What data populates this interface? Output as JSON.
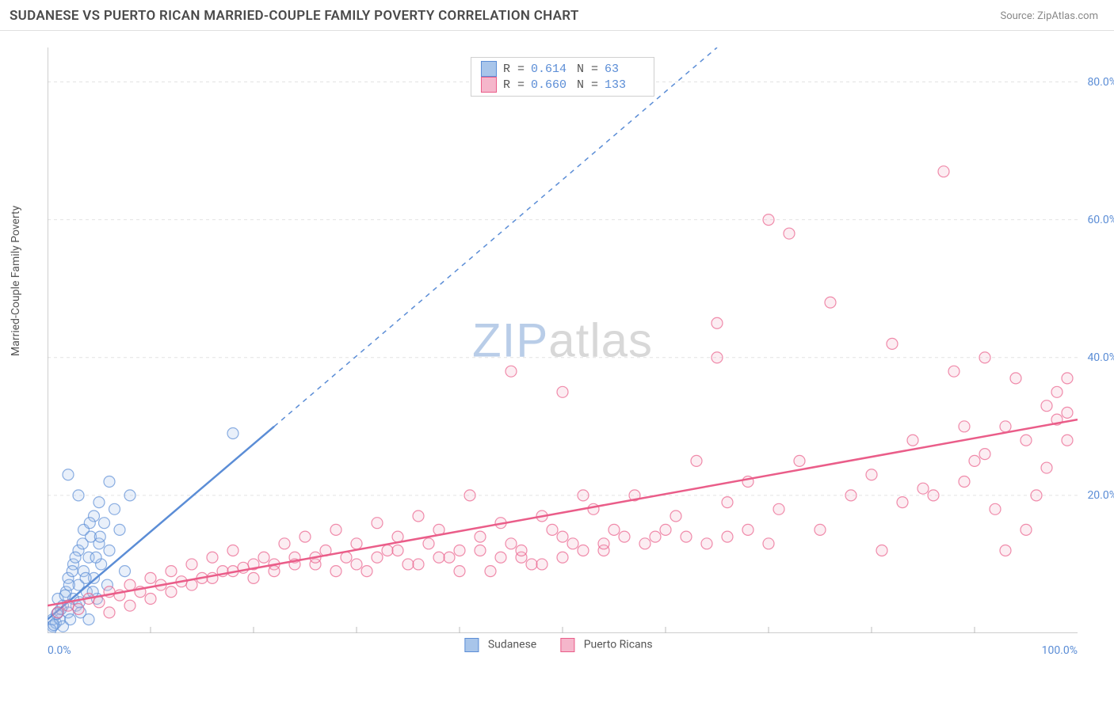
{
  "header": {
    "title": "SUDANESE VS PUERTO RICAN MARRIED-COUPLE FAMILY POVERTY CORRELATION CHART",
    "source": "Source: ZipAtlas.com"
  },
  "watermark": {
    "part1": "ZIP",
    "part2": "atlas"
  },
  "chart": {
    "type": "scatter",
    "ylabel": "Married-Couple Family Poverty",
    "xlim": [
      0,
      100
    ],
    "ylim": [
      0,
      85
    ],
    "xtick_labels": {
      "left": "0.0%",
      "right": "100.0%"
    },
    "xtick_minor": [
      10,
      20,
      30,
      40,
      50,
      60,
      70,
      80,
      90
    ],
    "ytick_labels": [
      "20.0%",
      "40.0%",
      "60.0%",
      "80.0%"
    ],
    "ytick_values": [
      20,
      40,
      60,
      80
    ],
    "grid_color": "#e3e3e3",
    "axis_color": "#bdbdbd",
    "background_color": "#ffffff",
    "marker_radius": 7,
    "marker_stroke_width": 1.2,
    "fill_opacity": 0.25,
    "series": [
      {
        "name": "Sudanese",
        "stat_r": "0.614",
        "stat_n": "63",
        "color": "#5b8dd6",
        "fill": "#a8c5ea",
        "trend_solid": {
          "x1": 0,
          "y1": 2,
          "x2": 22,
          "y2": 30
        },
        "trend_dash": {
          "x1": 22,
          "y1": 30,
          "x2": 65,
          "y2": 85
        },
        "points": [
          [
            0.5,
            1
          ],
          [
            0.5,
            2
          ],
          [
            0.8,
            1.5
          ],
          [
            1,
            3
          ],
          [
            1,
            5
          ],
          [
            1.2,
            2
          ],
          [
            1.5,
            4
          ],
          [
            1.5,
            1
          ],
          [
            1.8,
            6
          ],
          [
            2,
            3
          ],
          [
            2,
            8
          ],
          [
            2.2,
            2
          ],
          [
            2.5,
            5
          ],
          [
            2.5,
            10
          ],
          [
            2.8,
            4
          ],
          [
            3,
            7
          ],
          [
            3,
            12
          ],
          [
            3.2,
            3
          ],
          [
            3.5,
            9
          ],
          [
            3.5,
            15
          ],
          [
            3.8,
            6
          ],
          [
            4,
            11
          ],
          [
            4,
            2
          ],
          [
            4.2,
            14
          ],
          [
            4.5,
            8
          ],
          [
            4.5,
            17
          ],
          [
            4.8,
            5
          ],
          [
            5,
            13
          ],
          [
            5,
            19
          ],
          [
            5.2,
            10
          ],
          [
            5.5,
            16
          ],
          [
            5.8,
            7
          ],
          [
            6,
            12
          ],
          [
            6,
            22
          ],
          [
            6.5,
            18
          ],
          [
            7,
            15
          ],
          [
            7.5,
            9
          ],
          [
            8,
            20
          ],
          [
            1,
            -1
          ],
          [
            2,
            -1.5
          ],
          [
            3,
            -1
          ],
          [
            4,
            -2
          ],
          [
            5,
            -1.5
          ],
          [
            6,
            -2
          ],
          [
            7,
            -1
          ],
          [
            0.3,
            0.5
          ],
          [
            0.6,
            1.2
          ],
          [
            0.9,
            2.8
          ],
          [
            1.3,
            3.5
          ],
          [
            1.7,
            5.5
          ],
          [
            2.1,
            7
          ],
          [
            2.4,
            9
          ],
          [
            2.7,
            11
          ],
          [
            3.1,
            4.5
          ],
          [
            3.4,
            13
          ],
          [
            3.7,
            8
          ],
          [
            4.1,
            16
          ],
          [
            4.4,
            6
          ],
          [
            4.7,
            11
          ],
          [
            5.1,
            14
          ],
          [
            18,
            29
          ],
          [
            2,
            23
          ],
          [
            3,
            20
          ]
        ]
      },
      {
        "name": "Puerto Ricans",
        "stat_r": "0.660",
        "stat_n": "133",
        "color": "#ea5d89",
        "fill": "#f5b6cb",
        "trend_solid": {
          "x1": 0,
          "y1": 4,
          "x2": 100,
          "y2": 31
        },
        "trend_dash": null,
        "points": [
          [
            1,
            3
          ],
          [
            2,
            4
          ],
          [
            3,
            3.5
          ],
          [
            4,
            5
          ],
          [
            5,
            4.5
          ],
          [
            6,
            6
          ],
          [
            7,
            5.5
          ],
          [
            8,
            7
          ],
          [
            9,
            6
          ],
          [
            10,
            8
          ],
          [
            11,
            7
          ],
          [
            12,
            9
          ],
          [
            13,
            7.5
          ],
          [
            14,
            10
          ],
          [
            15,
            8
          ],
          [
            16,
            11
          ],
          [
            17,
            9
          ],
          [
            18,
            12
          ],
          [
            19,
            9.5
          ],
          [
            20,
            10
          ],
          [
            21,
            11
          ],
          [
            22,
            10
          ],
          [
            23,
            13
          ],
          [
            24,
            11
          ],
          [
            25,
            14
          ],
          [
            26,
            10
          ],
          [
            27,
            12
          ],
          [
            28,
            15
          ],
          [
            29,
            11
          ],
          [
            30,
            13
          ],
          [
            31,
            9
          ],
          [
            32,
            16
          ],
          [
            33,
            12
          ],
          [
            34,
            14
          ],
          [
            35,
            10
          ],
          [
            36,
            17
          ],
          [
            37,
            13
          ],
          [
            38,
            15
          ],
          [
            39,
            11
          ],
          [
            40,
            12
          ],
          [
            41,
            20
          ],
          [
            42,
            14
          ],
          [
            43,
            9
          ],
          [
            44,
            16
          ],
          [
            45,
            13
          ],
          [
            46,
            11
          ],
          [
            48,
            17
          ],
          [
            50,
            14
          ],
          [
            52,
            20
          ],
          [
            54,
            12
          ],
          [
            45,
            38
          ],
          [
            47,
            10
          ],
          [
            49,
            15
          ],
          [
            51,
            13
          ],
          [
            53,
            18
          ],
          [
            55,
            15
          ],
          [
            57,
            20
          ],
          [
            59,
            14
          ],
          [
            61,
            17
          ],
          [
            63,
            25
          ],
          [
            50,
            35
          ],
          [
            65,
            45
          ],
          [
            65,
            40
          ],
          [
            66,
            19
          ],
          [
            68,
            22
          ],
          [
            70,
            60
          ],
          [
            71,
            18
          ],
          [
            72,
            58
          ],
          [
            73,
            25
          ],
          [
            75,
            15
          ],
          [
            76,
            48
          ],
          [
            78,
            20
          ],
          [
            80,
            23
          ],
          [
            81,
            12
          ],
          [
            82,
            42
          ],
          [
            83,
            19
          ],
          [
            84,
            28
          ],
          [
            85,
            21
          ],
          [
            86,
            20
          ],
          [
            87,
            67
          ],
          [
            88,
            38
          ],
          [
            89,
            22
          ],
          [
            90,
            25
          ],
          [
            91,
            40
          ],
          [
            92,
            18
          ],
          [
            93,
            30
          ],
          [
            94,
            37
          ],
          [
            95,
            28
          ],
          [
            96,
            20
          ],
          [
            97,
            33
          ],
          [
            98,
            31
          ],
          [
            98,
            35
          ],
          [
            99,
            32
          ],
          [
            99,
            28
          ],
          [
            99,
            37
          ],
          [
            97,
            24
          ],
          [
            95,
            15
          ],
          [
            93,
            12
          ],
          [
            91,
            26
          ],
          [
            89,
            30
          ],
          [
            6,
            3
          ],
          [
            8,
            4
          ],
          [
            10,
            5
          ],
          [
            12,
            6
          ],
          [
            14,
            7
          ],
          [
            16,
            8
          ],
          [
            18,
            9
          ],
          [
            20,
            8
          ],
          [
            22,
            9
          ],
          [
            24,
            10
          ],
          [
            26,
            11
          ],
          [
            28,
            9
          ],
          [
            30,
            10
          ],
          [
            32,
            11
          ],
          [
            34,
            12
          ],
          [
            36,
            10
          ],
          [
            38,
            11
          ],
          [
            40,
            9
          ],
          [
            42,
            12
          ],
          [
            44,
            11
          ],
          [
            46,
            12
          ],
          [
            48,
            10
          ],
          [
            50,
            11
          ],
          [
            52,
            12
          ],
          [
            54,
            13
          ],
          [
            56,
            14
          ],
          [
            58,
            13
          ],
          [
            60,
            15
          ],
          [
            62,
            14
          ],
          [
            64,
            13
          ],
          [
            66,
            14
          ],
          [
            68,
            15
          ],
          [
            70,
            13
          ]
        ]
      }
    ],
    "bottom_legend": [
      {
        "label": "Sudanese",
        "color": "#5b8dd6",
        "fill": "#a8c5ea"
      },
      {
        "label": "Puerto Ricans",
        "color": "#ea5d89",
        "fill": "#f5b6cb"
      }
    ]
  }
}
